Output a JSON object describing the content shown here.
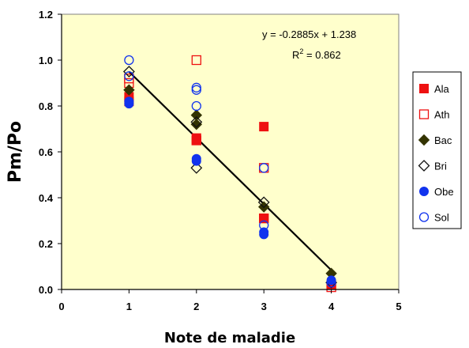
{
  "chart_data": {
    "type": "scatter",
    "xlabel": "Note de maladie",
    "ylabel": "Pm/Po",
    "xlim": [
      0,
      5
    ],
    "ylim": [
      0,
      1.2
    ],
    "xticks": [
      "0",
      "1",
      "2",
      "3",
      "4",
      "5"
    ],
    "yticks": [
      "0.0",
      "0.2",
      "0.4",
      "0.6",
      "0.8",
      "1.0",
      "1.2"
    ],
    "plot_background": "#FFFFCC",
    "grid": false,
    "legend_placement": "right",
    "annotation": {
      "equation": "y = -0.2885x + 1.238",
      "r2_label": "R",
      "r2_sup": "2",
      "r2_value": " = 0.862"
    },
    "trendline": {
      "slope": -0.2885,
      "intercept": 1.238,
      "x_range": [
        1,
        4
      ]
    },
    "series": [
      {
        "name": "Ala",
        "marker": "square",
        "filled": true,
        "color": "#EE1111",
        "points": [
          [
            1,
            0.82
          ],
          [
            1,
            0.84
          ],
          [
            2,
            0.65
          ],
          [
            2,
            0.66
          ],
          [
            3,
            0.71
          ],
          [
            3,
            0.31
          ],
          [
            4,
            0.02
          ]
        ]
      },
      {
        "name": "Ath",
        "marker": "square",
        "filled": false,
        "color": "#EE1111",
        "points": [
          [
            1,
            0.9
          ],
          [
            1,
            0.92
          ],
          [
            2,
            1.0
          ],
          [
            2,
            0.65
          ],
          [
            3,
            0.53
          ],
          [
            3,
            0.31
          ],
          [
            4,
            0.01
          ]
        ]
      },
      {
        "name": "Bac",
        "marker": "diamond",
        "filled": true,
        "color": "#333300",
        "points": [
          [
            1,
            0.87
          ],
          [
            2,
            0.76
          ],
          [
            2,
            0.72
          ],
          [
            3,
            0.36
          ],
          [
            4,
            0.07
          ]
        ]
      },
      {
        "name": "Bri",
        "marker": "diamond",
        "filled": false,
        "color": "#111111",
        "points": [
          [
            1,
            0.95
          ],
          [
            2,
            0.73
          ],
          [
            2,
            0.53
          ],
          [
            3,
            0.38
          ],
          [
            4,
            0.03
          ]
        ]
      },
      {
        "name": "Obe",
        "marker": "circle",
        "filled": true,
        "color": "#1133EE",
        "points": [
          [
            1,
            0.81
          ],
          [
            1,
            0.82
          ],
          [
            2,
            0.57
          ],
          [
            2,
            0.56
          ],
          [
            3,
            0.25
          ],
          [
            3,
            0.24
          ],
          [
            4,
            0.04
          ]
        ]
      },
      {
        "name": "Sol",
        "marker": "circle",
        "filled": false,
        "color": "#1133EE",
        "points": [
          [
            1,
            1.0
          ],
          [
            1,
            0.93
          ],
          [
            2,
            0.88
          ],
          [
            2,
            0.87
          ],
          [
            2,
            0.8
          ],
          [
            3,
            0.53
          ],
          [
            3,
            0.28
          ],
          [
            4,
            0.03
          ]
        ]
      }
    ]
  }
}
